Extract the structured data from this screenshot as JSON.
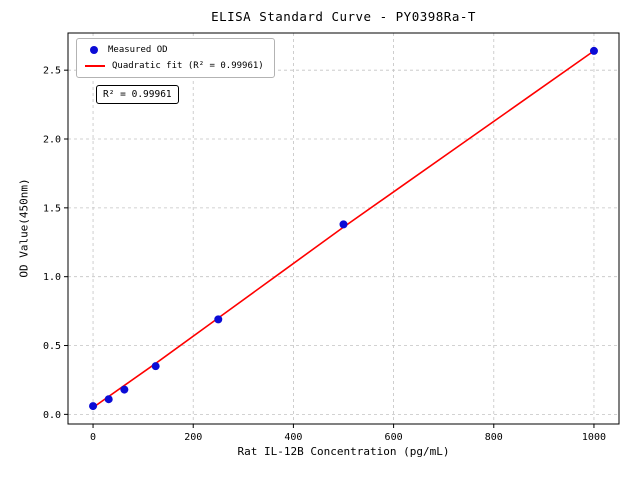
{
  "chart_data": {
    "type": "scatter",
    "title": "ELISA Standard Curve - PY0398Ra-T",
    "xlabel": "Rat IL-12B Concentration (pg/mL)",
    "ylabel": "OD Value(450nm)",
    "xlim": [
      -50,
      1050
    ],
    "ylim": [
      -0.07,
      2.77
    ],
    "xticks": [
      0,
      200,
      400,
      600,
      800,
      1000
    ],
    "xtick_labels": [
      "0",
      "200",
      "400",
      "600",
      "800",
      "1000"
    ],
    "yticks": [
      0,
      0.5,
      1,
      1.5,
      2,
      2.5
    ],
    "ytick_labels": [
      "0.0",
      "0.5",
      "1.0",
      "1.5",
      "2.0",
      "2.5"
    ],
    "grid": true,
    "grid_color": "#c3c3c3",
    "annotation": "R² = 0.99961",
    "legend_position": "upper left",
    "series": [
      {
        "name": "Measured OD",
        "type": "scatter",
        "color": "#0b0bd6",
        "x": [
          0,
          31.25,
          62.5,
          125,
          250,
          500,
          1000
        ],
        "y": [
          0.06,
          0.11,
          0.18,
          0.35,
          0.69,
          1.38,
          2.64
        ]
      },
      {
        "name": "Quadratic fit (R² = 0.99961)",
        "type": "line",
        "color": "#ff0000",
        "x": [
          0,
          125,
          250,
          375,
          500,
          625,
          750,
          875,
          1000
        ],
        "y": [
          0.05,
          0.37,
          0.7,
          1.03,
          1.36,
          1.68,
          2.0,
          2.32,
          2.64
        ]
      }
    ]
  }
}
